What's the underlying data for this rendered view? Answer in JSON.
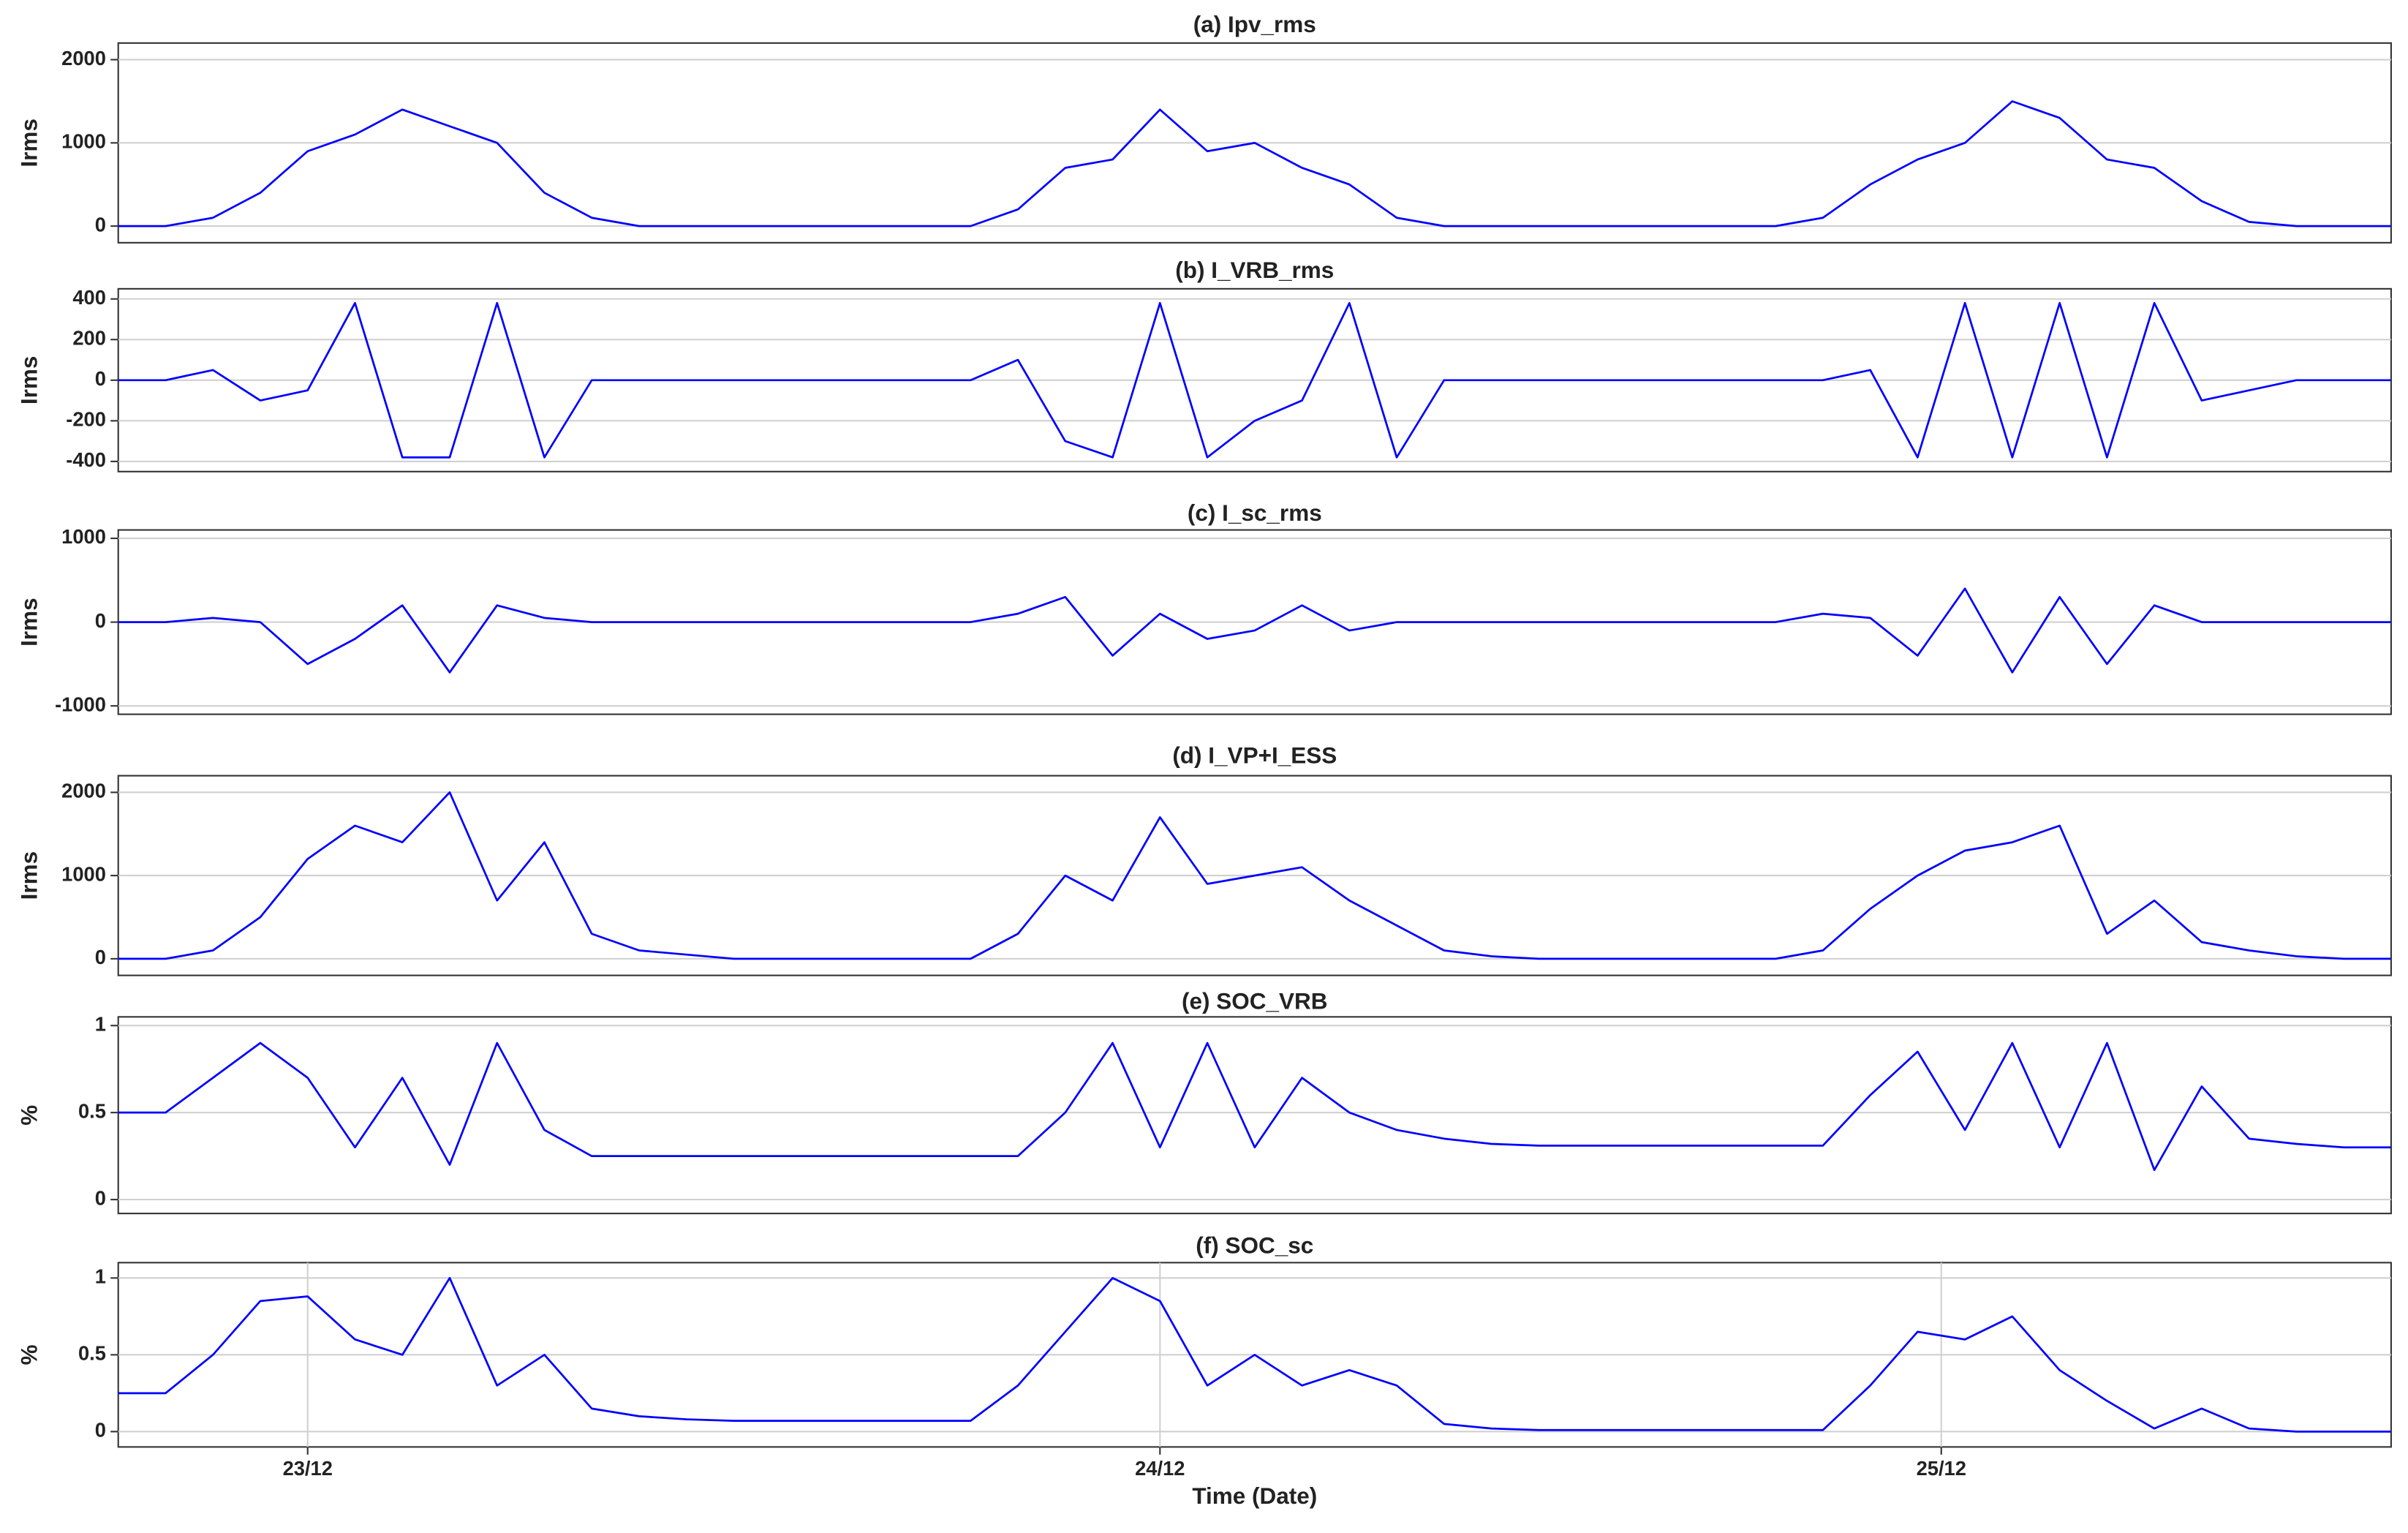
{
  "chart_data": [
    {
      "type": "line",
      "title": "(a) Ipv_rms",
      "y_label": "Irms",
      "color": "#0000ff",
      "grid": true,
      "xlim": [
        0,
        96
      ],
      "ylim": [
        -200,
        2200
      ],
      "yticks": [
        0,
        1000,
        2000
      ],
      "x": [
        0,
        2,
        4,
        6,
        8,
        10,
        12,
        14,
        16,
        18,
        20,
        22,
        24,
        26,
        28,
        30,
        32,
        34,
        36,
        38,
        40,
        42,
        44,
        46,
        48,
        50,
        52,
        54,
        56,
        58,
        60,
        62,
        64,
        66,
        68,
        70,
        72,
        74,
        76,
        78,
        80,
        82,
        84,
        86,
        88,
        90,
        92,
        94,
        96
      ],
      "values": [
        0,
        0,
        100,
        400,
        900,
        1100,
        1400,
        1200,
        1000,
        400,
        100,
        0,
        0,
        0,
        0,
        0,
        0,
        0,
        0,
        200,
        700,
        800,
        1400,
        900,
        1000,
        700,
        500,
        100,
        0,
        0,
        0,
        0,
        0,
        0,
        0,
        0,
        100,
        500,
        800,
        1000,
        1500,
        1300,
        800,
        700,
        300,
        50,
        0,
        0,
        0
      ]
    },
    {
      "type": "line",
      "title": "(b) I_VRB_rms",
      "y_label": "Irms",
      "color": "#0000ff",
      "grid": true,
      "xlim": [
        0,
        96
      ],
      "ylim": [
        -450,
        450
      ],
      "yticks": [
        -400,
        -200,
        0,
        200,
        400
      ],
      "x": [
        0,
        2,
        4,
        6,
        8,
        10,
        12,
        14,
        16,
        18,
        20,
        22,
        24,
        26,
        28,
        30,
        32,
        34,
        36,
        38,
        40,
        42,
        44,
        46,
        48,
        50,
        52,
        54,
        56,
        58,
        60,
        62,
        64,
        66,
        68,
        70,
        72,
        74,
        76,
        78,
        80,
        82,
        84,
        86,
        88,
        90,
        92,
        94,
        96
      ],
      "values": [
        0,
        0,
        50,
        -100,
        -50,
        380,
        -380,
        -380,
        380,
        -380,
        0,
        0,
        0,
        0,
        0,
        0,
        0,
        0,
        0,
        100,
        -300,
        -380,
        380,
        -380,
        -200,
        -100,
        380,
        -380,
        0,
        0,
        0,
        0,
        0,
        0,
        0,
        0,
        0,
        50,
        -380,
        380,
        -380,
        380,
        -380,
        380,
        -100,
        -50,
        0,
        0,
        0
      ]
    },
    {
      "type": "line",
      "title": "(c) I_sc_rms",
      "y_label": "Irms",
      "color": "#0000ff",
      "grid": true,
      "xlim": [
        0,
        96
      ],
      "ylim": [
        -1100,
        1100
      ],
      "yticks": [
        -1000,
        0,
        1000
      ],
      "x": [
        0,
        2,
        4,
        6,
        8,
        10,
        12,
        14,
        16,
        18,
        20,
        22,
        24,
        26,
        28,
        30,
        32,
        34,
        36,
        38,
        40,
        42,
        44,
        46,
        48,
        50,
        52,
        54,
        56,
        58,
        60,
        62,
        64,
        66,
        68,
        70,
        72,
        74,
        76,
        78,
        80,
        82,
        84,
        86,
        88,
        90,
        92,
        94,
        96
      ],
      "values": [
        0,
        0,
        50,
        0,
        -500,
        -200,
        200,
        -600,
        200,
        50,
        0,
        0,
        0,
        0,
        0,
        0,
        0,
        0,
        0,
        100,
        300,
        -400,
        100,
        -200,
        -100,
        200,
        -100,
        0,
        0,
        0,
        0,
        0,
        0,
        0,
        0,
        0,
        100,
        50,
        -400,
        400,
        -600,
        300,
        -500,
        200,
        0,
        0,
        0,
        0,
        0
      ]
    },
    {
      "type": "line",
      "title": "(d) I_VP+I_ESS",
      "y_label": "Irms",
      "color": "#0000ff",
      "grid": true,
      "xlim": [
        0,
        96
      ],
      "ylim": [
        -200,
        2200
      ],
      "yticks": [
        0,
        1000,
        2000
      ],
      "x": [
        0,
        2,
        4,
        6,
        8,
        10,
        12,
        14,
        16,
        18,
        20,
        22,
        24,
        26,
        28,
        30,
        32,
        34,
        36,
        38,
        40,
        42,
        44,
        46,
        48,
        50,
        52,
        54,
        56,
        58,
        60,
        62,
        64,
        66,
        68,
        70,
        72,
        74,
        76,
        78,
        80,
        82,
        84,
        86,
        88,
        90,
        92,
        94,
        96
      ],
      "values": [
        0,
        0,
        100,
        500,
        1200,
        1600,
        1400,
        2000,
        700,
        1400,
        300,
        100,
        50,
        0,
        0,
        0,
        0,
        0,
        0,
        300,
        1000,
        700,
        1700,
        900,
        1000,
        1100,
        700,
        400,
        100,
        30,
        0,
        0,
        0,
        0,
        0,
        0,
        100,
        600,
        1000,
        1300,
        1400,
        1600,
        300,
        700,
        200,
        100,
        30,
        0,
        0
      ]
    },
    {
      "type": "line",
      "title": "(e) SOC_VRB",
      "y_label": "%",
      "color": "#0000ff",
      "grid": true,
      "xlim": [
        0,
        96
      ],
      "ylim": [
        -0.08,
        1.05
      ],
      "yticks": [
        0,
        0.5,
        1
      ],
      "x": [
        0,
        2,
        4,
        6,
        8,
        10,
        12,
        14,
        16,
        18,
        20,
        22,
        24,
        26,
        28,
        30,
        32,
        34,
        36,
        38,
        40,
        42,
        44,
        46,
        48,
        50,
        52,
        54,
        56,
        58,
        60,
        62,
        64,
        66,
        68,
        70,
        72,
        74,
        76,
        78,
        80,
        82,
        84,
        86,
        88,
        90,
        92,
        94,
        96
      ],
      "values": [
        0.5,
        0.5,
        0.7,
        0.9,
        0.7,
        0.3,
        0.7,
        0.2,
        0.9,
        0.4,
        0.25,
        0.25,
        0.25,
        0.25,
        0.25,
        0.25,
        0.25,
        0.25,
        0.25,
        0.25,
        0.5,
        0.9,
        0.3,
        0.9,
        0.3,
        0.7,
        0.5,
        0.4,
        0.35,
        0.32,
        0.31,
        0.31,
        0.31,
        0.31,
        0.31,
        0.31,
        0.31,
        0.6,
        0.85,
        0.4,
        0.9,
        0.3,
        0.9,
        0.17,
        0.65,
        0.35,
        0.32,
        0.3,
        0.3
      ]
    },
    {
      "type": "line",
      "title": "(f) SOC_sc",
      "y_label": "%",
      "x_label": "Time (Date)",
      "color": "#0000ff",
      "grid": true,
      "xlim": [
        0,
        96
      ],
      "ylim": [
        -0.1,
        1.1
      ],
      "yticks": [
        0,
        0.5,
        1
      ],
      "xticks": [
        {
          "value": 8,
          "label": "23/12"
        },
        {
          "value": 44,
          "label": "24/12"
        },
        {
          "value": 77,
          "label": "25/12"
        }
      ],
      "x": [
        0,
        2,
        4,
        6,
        8,
        10,
        12,
        14,
        16,
        18,
        20,
        22,
        24,
        26,
        28,
        30,
        32,
        34,
        36,
        38,
        40,
        42,
        44,
        46,
        48,
        50,
        52,
        54,
        56,
        58,
        60,
        62,
        64,
        66,
        68,
        70,
        72,
        74,
        76,
        78,
        80,
        82,
        84,
        86,
        88,
        90,
        92,
        94,
        96
      ],
      "values": [
        0.25,
        0.25,
        0.5,
        0.85,
        0.88,
        0.6,
        0.5,
        1,
        0.3,
        0.5,
        0.15,
        0.1,
        0.08,
        0.07,
        0.07,
        0.07,
        0.07,
        0.07,
        0.07,
        0.3,
        0.65,
        1,
        0.85,
        0.3,
        0.5,
        0.3,
        0.4,
        0.3,
        0.05,
        0.02,
        0.01,
        0.01,
        0.01,
        0.01,
        0.01,
        0.01,
        0.01,
        0.3,
        0.65,
        0.6,
        0.75,
        0.4,
        0.2,
        0.02,
        0.15,
        0.02,
        0,
        0,
        0
      ]
    }
  ]
}
